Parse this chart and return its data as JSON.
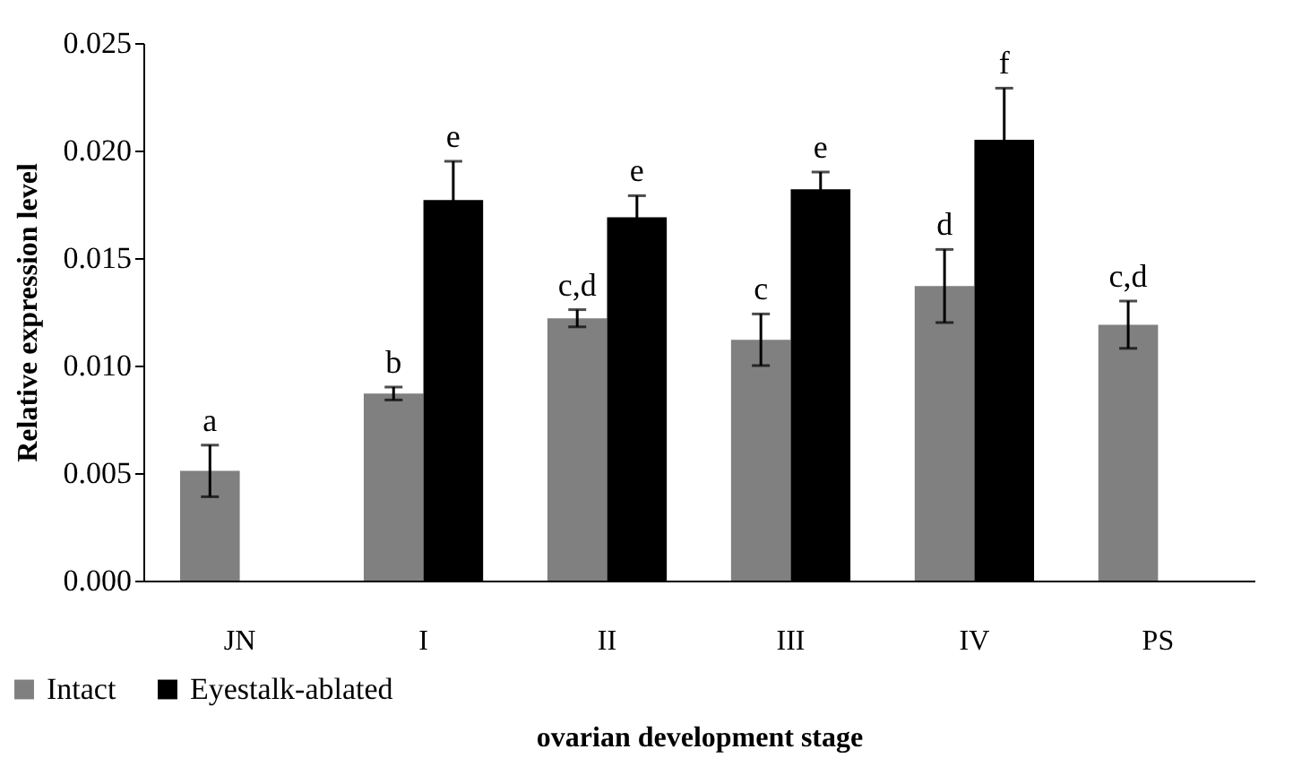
{
  "chart_data": {
    "type": "bar",
    "xlabel": "ovarian development stage",
    "ylabel": "Relative expression level",
    "categories": [
      "JN",
      "I",
      "II",
      "III",
      "IV",
      "PS"
    ],
    "series": [
      {
        "name": "Intact",
        "color": "#808080",
        "values": [
          0.0051,
          0.0087,
          0.0122,
          0.0112,
          0.0137,
          0.0119
        ],
        "errors": [
          0.0012,
          0.0003,
          0.0004,
          0.0012,
          0.0017,
          0.0011
        ],
        "value_labels": [
          "a",
          "b",
          "c,d",
          "c",
          "d",
          "c,d"
        ]
      },
      {
        "name": "Eyestalk-ablated",
        "color": "#000000",
        "values": [
          null,
          0.0177,
          0.0169,
          0.0182,
          0.0205,
          null
        ],
        "errors": [
          null,
          0.0018,
          0.001,
          0.0008,
          0.0024,
          null
        ],
        "value_labels": [
          null,
          "e",
          "e",
          "e",
          "f",
          null
        ]
      }
    ],
    "ylim": [
      0,
      0.025
    ],
    "yticks": [
      {
        "value": 0,
        "label": "0.000"
      },
      {
        "value": 0.005,
        "label": "0.005"
      },
      {
        "value": 0.01,
        "label": "0.010"
      },
      {
        "value": 0.015,
        "label": "0.015"
      },
      {
        "value": 0.02,
        "label": "0.020"
      },
      {
        "value": 0.025,
        "label": "0.025"
      }
    ],
    "grid": false,
    "legend": "bottom left"
  }
}
